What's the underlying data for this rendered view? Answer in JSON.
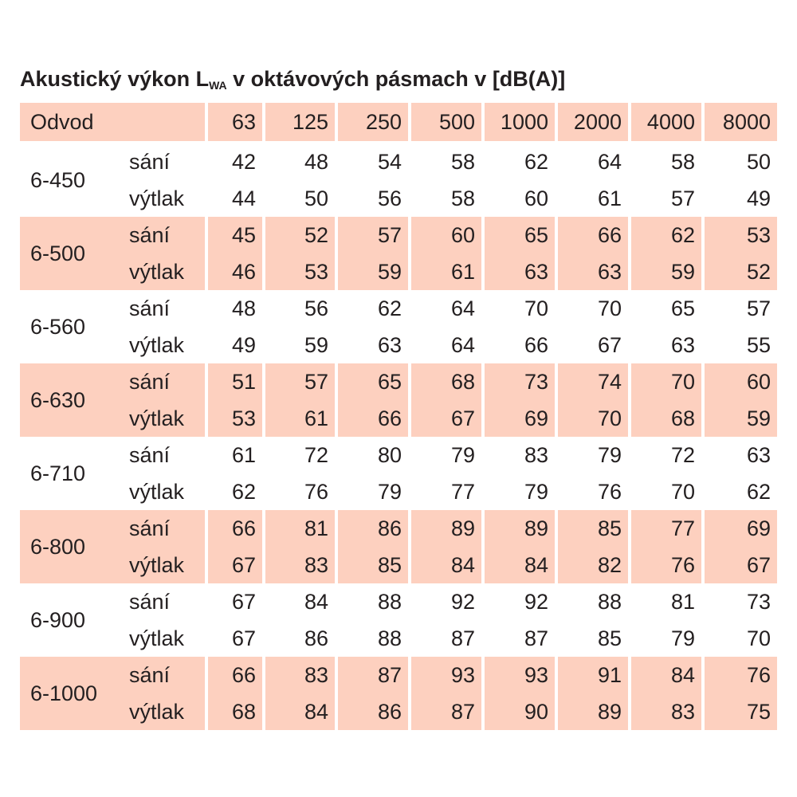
{
  "title": {
    "main": "Akustický výkon L",
    "sub": "WA",
    "rest": " v oktávových pásmach v [dB(A)]"
  },
  "header": {
    "label": "Odvod",
    "bands": [
      "63",
      "125",
      "250",
      "500",
      "1000",
      "2000",
      "4000",
      "8000"
    ]
  },
  "row_labels": [
    "sání",
    "výtlak"
  ],
  "groups": [
    {
      "name": "6-450",
      "sani": [
        "42",
        "48",
        "54",
        "58",
        "62",
        "64",
        "58",
        "50"
      ],
      "vytlak": [
        "44",
        "50",
        "56",
        "58",
        "60",
        "61",
        "57",
        "49"
      ]
    },
    {
      "name": "6-500",
      "sani": [
        "45",
        "52",
        "57",
        "60",
        "65",
        "66",
        "62",
        "53"
      ],
      "vytlak": [
        "46",
        "53",
        "59",
        "61",
        "63",
        "63",
        "59",
        "52"
      ]
    },
    {
      "name": "6-560",
      "sani": [
        "48",
        "56",
        "62",
        "64",
        "70",
        "70",
        "65",
        "57"
      ],
      "vytlak": [
        "49",
        "59",
        "63",
        "64",
        "66",
        "67",
        "63",
        "55"
      ]
    },
    {
      "name": "6-630",
      "sani": [
        "51",
        "57",
        "65",
        "68",
        "73",
        "74",
        "70",
        "60"
      ],
      "vytlak": [
        "53",
        "61",
        "66",
        "67",
        "69",
        "70",
        "68",
        "59"
      ]
    },
    {
      "name": "6-710",
      "sani": [
        "61",
        "72",
        "80",
        "79",
        "83",
        "79",
        "72",
        "63"
      ],
      "vytlak": [
        "62",
        "76",
        "79",
        "77",
        "79",
        "76",
        "70",
        "62"
      ]
    },
    {
      "name": "6-800",
      "sani": [
        "66",
        "81",
        "86",
        "89",
        "89",
        "85",
        "77",
        "69"
      ],
      "vytlak": [
        "67",
        "83",
        "85",
        "84",
        "84",
        "82",
        "76",
        "67"
      ]
    },
    {
      "name": "6-900",
      "sani": [
        "67",
        "84",
        "88",
        "92",
        "92",
        "88",
        "81",
        "73"
      ],
      "vytlak": [
        "67",
        "86",
        "88",
        "87",
        "87",
        "85",
        "79",
        "70"
      ]
    },
    {
      "name": "6-1000",
      "sani": [
        "66",
        "83",
        "87",
        "93",
        "93",
        "91",
        "84",
        "76"
      ],
      "vytlak": [
        "68",
        "84",
        "86",
        "87",
        "90",
        "89",
        "83",
        "75"
      ]
    }
  ],
  "colors": {
    "shade": "#fdd0bf",
    "text": "#231f20"
  }
}
